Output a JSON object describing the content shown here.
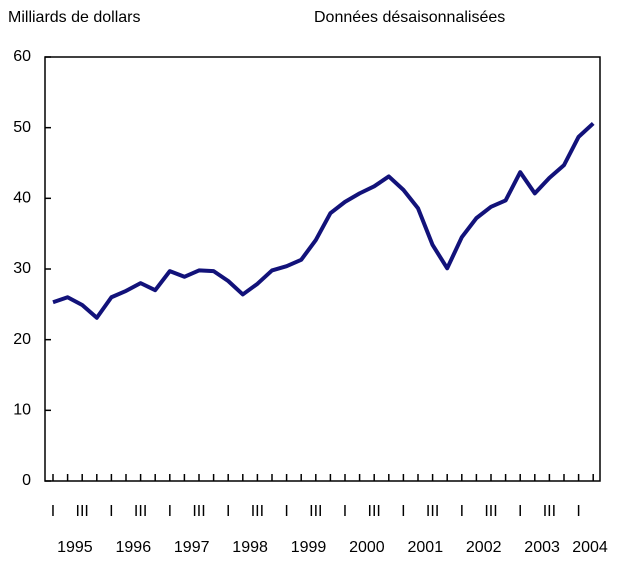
{
  "chart_data": {
    "type": "line",
    "y_axis_label": "Milliards de dollars",
    "subtitle": "Données désaisonnalisées",
    "categories": [
      "I",
      null,
      "III",
      null,
      "I",
      null,
      "III",
      null,
      "I",
      null,
      "III",
      null,
      "I",
      null,
      "III",
      null,
      "I",
      null,
      "III",
      null,
      "I",
      null,
      "III",
      null,
      "I",
      null,
      "III",
      null,
      "I",
      null,
      "III",
      null,
      "I",
      null,
      "III",
      null,
      "I",
      null
    ],
    "years": [
      "1995",
      "1996",
      "1997",
      "1998",
      "1999",
      "2000",
      "2001",
      "2002",
      "2003",
      "2004"
    ],
    "series": [
      {
        "name": null,
        "color": "#12127a",
        "values": [
          25.3,
          26.0,
          24.9,
          23.1,
          26.0,
          26.9,
          28.0,
          27.0,
          29.7,
          28.9,
          29.8,
          29.7,
          28.3,
          26.4,
          27.9,
          29.8,
          30.4,
          31.3,
          34.1,
          37.9,
          39.5,
          40.7,
          41.7,
          43.1,
          41.2,
          38.6,
          33.4,
          30.1,
          34.5,
          37.2,
          38.8,
          39.7,
          43.7,
          40.7,
          42.9,
          44.7,
          48.7,
          50.6
        ]
      }
    ],
    "ylim": [
      0,
      60
    ],
    "yticks": [
      0,
      10,
      20,
      30,
      40,
      50,
      60
    ],
    "grid": false
  }
}
